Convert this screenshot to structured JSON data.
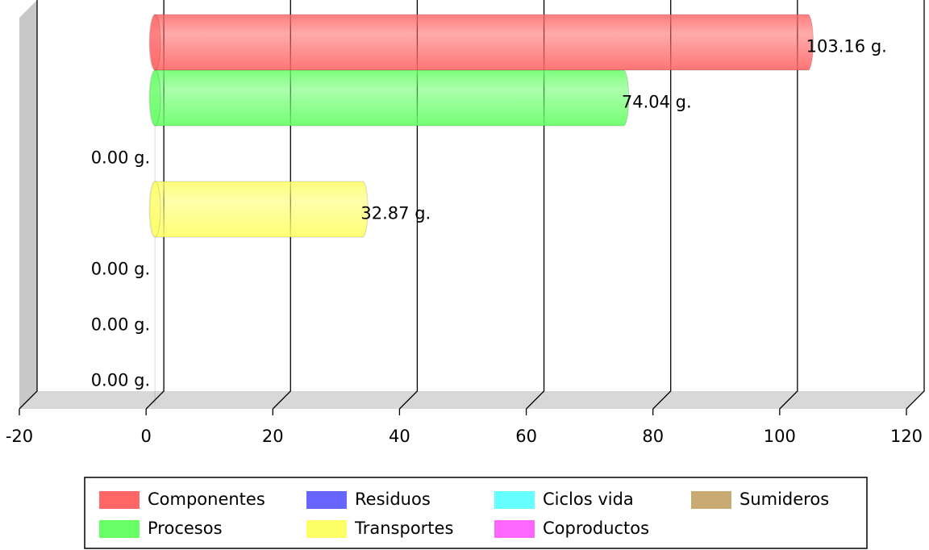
{
  "chart_data": {
    "type": "bar",
    "orientation": "horizontal",
    "xlim": [
      -20,
      120
    ],
    "xticks": [
      -20,
      0,
      20,
      40,
      60,
      80,
      100,
      120
    ],
    "grid": true,
    "legend": "bottom",
    "series": [
      {
        "name": "Componentes",
        "color": "#ff6666",
        "values": [
          103.16
        ],
        "value_labels": [
          "103.16 g."
        ]
      },
      {
        "name": "Procesos",
        "color": "#66ff66",
        "values": [
          74.04
        ],
        "value_labels": [
          "74.04 g."
        ]
      },
      {
        "name": "Residuos",
        "color": "#6666ff",
        "values": [
          0
        ],
        "value_labels": [
          "0.00 g."
        ]
      },
      {
        "name": "Transportes",
        "color": "#ffff66",
        "values": [
          32.87
        ],
        "value_labels": [
          "32.87 g."
        ]
      },
      {
        "name": "Ciclos vida",
        "color": "#66ffff",
        "values": [
          0
        ],
        "value_labels": [
          "0.00 g."
        ]
      },
      {
        "name": "Coproductos",
        "color": "#ff66ff",
        "values": [
          0
        ],
        "value_labels": [
          "0.00 g."
        ]
      },
      {
        "name": "Sumideros",
        "color": "#c8aa72",
        "values": [
          0
        ],
        "value_labels": [
          "0.00 g."
        ]
      }
    ]
  }
}
